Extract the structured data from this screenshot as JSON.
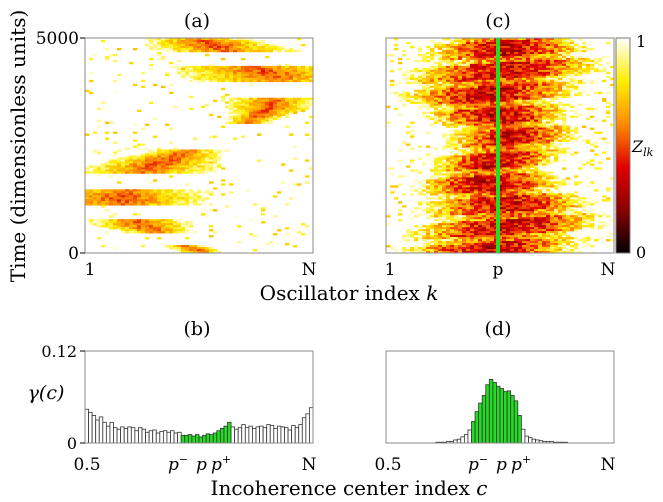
{
  "panels": {
    "a": "(a)",
    "b": "(b)",
    "c": "(c)",
    "d": "(d)"
  },
  "top": {
    "ylabel": "Time (dimensionless units)",
    "xlabel": "Oscillator index k",
    "y_ticks": [
      "5000",
      "0"
    ],
    "a_x_ticks": [
      "1",
      "N"
    ],
    "c_x_ticks": [
      "1",
      "p",
      "N"
    ],
    "colorbar": {
      "label": "Z_lk",
      "label_main": "Z",
      "label_sub": "lk",
      "ticks": [
        "1",
        "0"
      ]
    }
  },
  "bottom": {
    "ylabel": "γ(c)",
    "xlabel": "Incoherence center index c",
    "y_ticks": [
      "0.12",
      "0"
    ],
    "x_ticks_left": "0.5",
    "x_ticks_right": "N",
    "x_tick_mid": {
      "pminus": "p",
      "pminus_sup": "−",
      "p": "p",
      "pplus": "p",
      "pplus_sup": "+"
    }
  },
  "colors": {
    "green": "#22dd22",
    "bar_outline": "#333333",
    "colormap": [
      "#000000",
      "#8b0000",
      "#e00000",
      "#ff8c00",
      "#ffee00",
      "#ffffff"
    ]
  },
  "chart_data": [
    {
      "type": "heatmap",
      "panel": "(a)",
      "title": "(a)",
      "xlabel": "Oscillator index k",
      "ylabel": "Time (dimensionless units)",
      "ylim": [
        0,
        5000
      ],
      "x_range_labels": [
        "1",
        "N"
      ],
      "value_range": [
        0,
        1
      ],
      "description_of_pattern": "sparse drifting bands of partial coherence"
    },
    {
      "type": "heatmap",
      "panel": "(c)",
      "title": "(c)",
      "xlabel": "Oscillator index k",
      "ylim": [
        0,
        5000
      ],
      "x_range_labels": [
        "1",
        "p",
        "N"
      ],
      "value_range": [
        0,
        1
      ],
      "marker_line": {
        "at": "p",
        "color": "#22dd22"
      }
    },
    {
      "type": "bar",
      "panel": "(b)",
      "title": "(b)",
      "xlabel": "Incoherence center index c",
      "ylabel": "γ(c)",
      "ylim": [
        0,
        0.12
      ],
      "xlim_labels": [
        "0.5",
        "N"
      ],
      "values": [
        0.044,
        0.04,
        0.036,
        0.03,
        0.034,
        0.027,
        0.022,
        0.027,
        0.02,
        0.018,
        0.021,
        0.019,
        0.021,
        0.02,
        0.016,
        0.02,
        0.018,
        0.014,
        0.016,
        0.017,
        0.013,
        0.015,
        0.016,
        0.014,
        0.016,
        0.013,
        0.014,
        0.01,
        0.01,
        0.011,
        0.009,
        0.011,
        0.008,
        0.01,
        0.012,
        0.011,
        0.013,
        0.016,
        0.019,
        0.022,
        0.027,
        0.021,
        0.018,
        0.02,
        0.024,
        0.02,
        0.022,
        0.019,
        0.021,
        0.022,
        0.02,
        0.024,
        0.023,
        0.019,
        0.022,
        0.021,
        0.02,
        0.017,
        0.023,
        0.02,
        0.024,
        0.033,
        0.038,
        0.046
      ],
      "green_range": [
        27,
        40
      ]
    },
    {
      "type": "bar",
      "panel": "(d)",
      "title": "(d)",
      "xlim_labels": [
        "0.5",
        "N"
      ],
      "ylim": [
        0,
        0.12
      ],
      "values": [
        0.0,
        0.0,
        0.0,
        0.0,
        0.0,
        0.0,
        0.0,
        0.0,
        0.0,
        0.0,
        0.0,
        0.0,
        0.0,
        0.0,
        0.001,
        0.001,
        0.001,
        0.002,
        0.002,
        0.004,
        0.005,
        0.008,
        0.011,
        0.017,
        0.028,
        0.041,
        0.052,
        0.062,
        0.076,
        0.083,
        0.079,
        0.074,
        0.071,
        0.067,
        0.068,
        0.062,
        0.055,
        0.036,
        0.018,
        0.009,
        0.007,
        0.005,
        0.004,
        0.003,
        0.002,
        0.002,
        0.002,
        0.001,
        0.001,
        0.001,
        0.001,
        0.0,
        0.0,
        0.0,
        0.0,
        0.0,
        0.0,
        0.0,
        0.0,
        0.0,
        0.0,
        0.0,
        0.0,
        0.0
      ],
      "green_range": [
        24,
        37
      ]
    }
  ]
}
